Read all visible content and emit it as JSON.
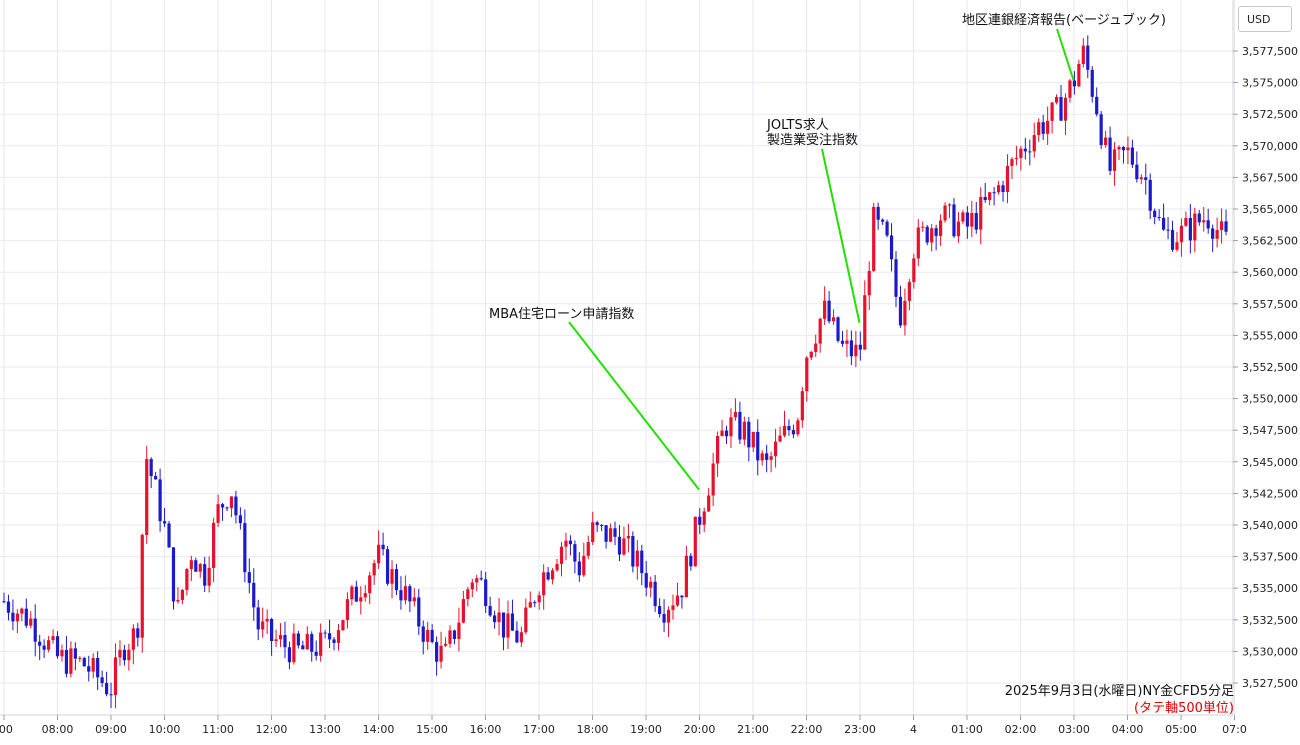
{
  "unit_label": "USD",
  "caption": {
    "line1": "2025年9月3日(水曜日)NY金CFD5分足",
    "line2": "(タテ軸500単位)"
  },
  "colors": {
    "up": "#e8102a",
    "down": "#1a1acc",
    "annotation_line": "#22e000",
    "grid": "#e6eaf0"
  },
  "annotations": [
    {
      "id": "mba",
      "lines": [
        "MBA住宅ローン申請指数"
      ],
      "time": "20:00",
      "price": 3542800
    },
    {
      "id": "jolts",
      "lines": [
        "JOLTS求人",
        "製造業受注指数"
      ],
      "time": "23:00",
      "price": 3556000
    },
    {
      "id": "beige",
      "lines": [
        "地区連銀経済報告(ベージュブック)"
      ],
      "time": "03:00",
      "price": 3575200
    }
  ],
  "chart_data": {
    "type": "candlestick",
    "title": "2025年9月3日(水曜日)NY金CFD5分足",
    "subtitle": "(タテ軸500単位)",
    "ylabel": "USD",
    "ylim": [
      3525000,
      3580000
    ],
    "y_ticks": [
      "3,527,500",
      "3,530,000",
      "3,532,500",
      "3,535,000",
      "3,537,500",
      "3,540,000",
      "3,542,500",
      "3,545,000",
      "3,547,500",
      "3,550,000",
      "3,552,500",
      "3,555,000",
      "3,557,500",
      "3,560,000",
      "3,562,500",
      "3,565,000",
      "3,567,500",
      "3,570,000",
      "3,572,500",
      "3,575,000",
      "3,577,500"
    ],
    "x_ticks": [
      ":00",
      "08:00",
      "09:00",
      "10:00",
      "11:00",
      "12:00",
      "13:00",
      "14:00",
      "15:00",
      "16:00",
      "17:00",
      "18:00",
      "19:00",
      "20:00",
      "21:00",
      "22:00",
      "23:00",
      "4",
      "01:00",
      "02:00",
      "03:00",
      "04:00",
      "05:00",
      "07:0"
    ],
    "grid": true,
    "series_path": [
      {
        "t": "07:00",
        "p": 3534000
      },
      {
        "t": "07:30",
        "p": 3532500
      },
      {
        "t": "08:00",
        "p": 3529500
      },
      {
        "t": "08:30",
        "p": 3529000
      },
      {
        "t": "09:00",
        "p": 3527000
      },
      {
        "t": "09:15",
        "p": 3530500
      },
      {
        "t": "09:30",
        "p": 3531500
      },
      {
        "t": "09:40",
        "p": 3545500
      },
      {
        "t": "10:00",
        "p": 3540000
      },
      {
        "t": "10:15",
        "p": 3533000
      },
      {
        "t": "10:30",
        "p": 3538000
      },
      {
        "t": "10:45",
        "p": 3536000
      },
      {
        "t": "11:00",
        "p": 3541000
      },
      {
        "t": "11:15",
        "p": 3543000
      },
      {
        "t": "11:30",
        "p": 3537500
      },
      {
        "t": "11:45",
        "p": 3532000
      },
      {
        "t": "12:00",
        "p": 3531000
      },
      {
        "t": "12:30",
        "p": 3530000
      },
      {
        "t": "13:00",
        "p": 3530500
      },
      {
        "t": "13:30",
        "p": 3534000
      },
      {
        "t": "14:00",
        "p": 3537500
      },
      {
        "t": "14:30",
        "p": 3534500
      },
      {
        "t": "15:00",
        "p": 3530500
      },
      {
        "t": "15:15",
        "p": 3529500
      },
      {
        "t": "15:30",
        "p": 3532500
      },
      {
        "t": "15:45",
        "p": 3536000
      },
      {
        "t": "16:00",
        "p": 3535000
      },
      {
        "t": "16:20",
        "p": 3532000
      },
      {
        "t": "16:40",
        "p": 3531000
      },
      {
        "t": "17:00",
        "p": 3535500
      },
      {
        "t": "17:30",
        "p": 3539000
      },
      {
        "t": "17:45",
        "p": 3536500
      },
      {
        "t": "18:00",
        "p": 3539500
      },
      {
        "t": "18:30",
        "p": 3539000
      },
      {
        "t": "19:00",
        "p": 3536000
      },
      {
        "t": "19:20",
        "p": 3533500
      },
      {
        "t": "19:40",
        "p": 3535000
      },
      {
        "t": "20:00",
        "p": 3540500
      },
      {
        "t": "20:15",
        "p": 3544500
      },
      {
        "t": "20:30",
        "p": 3548000
      },
      {
        "t": "20:50",
        "p": 3547500
      },
      {
        "t": "21:15",
        "p": 3544500
      },
      {
        "t": "21:30",
        "p": 3546500
      },
      {
        "t": "21:50",
        "p": 3548500
      },
      {
        "t": "22:00",
        "p": 3553500
      },
      {
        "t": "22:20",
        "p": 3557000
      },
      {
        "t": "22:40",
        "p": 3554000
      },
      {
        "t": "23:00",
        "p": 3553500
      },
      {
        "t": "23:15",
        "p": 3564000
      },
      {
        "t": "23:30",
        "p": 3562500
      },
      {
        "t": "23:45",
        "p": 3556500
      },
      {
        "t": "00:00",
        "p": 3562000
      },
      {
        "t": "00:30",
        "p": 3564500
      },
      {
        "t": "01:00",
        "p": 3563500
      },
      {
        "t": "01:30",
        "p": 3566000
      },
      {
        "t": "02:00",
        "p": 3569500
      },
      {
        "t": "02:20",
        "p": 3571500
      },
      {
        "t": "02:40",
        "p": 3572500
      },
      {
        "t": "03:00",
        "p": 3575000
      },
      {
        "t": "03:10",
        "p": 3577500
      },
      {
        "t": "03:25",
        "p": 3573500
      },
      {
        "t": "03:40",
        "p": 3568000
      },
      {
        "t": "04:00",
        "p": 3569500
      },
      {
        "t": "04:20",
        "p": 3567500
      },
      {
        "t": "04:40",
        "p": 3563000
      },
      {
        "t": "05:00",
        "p": 3563000
      },
      {
        "t": "05:30",
        "p": 3564500
      },
      {
        "t": "05:50",
        "p": 3562500
      },
      {
        "t": "06:30",
        "p": 3559000
      }
    ]
  }
}
